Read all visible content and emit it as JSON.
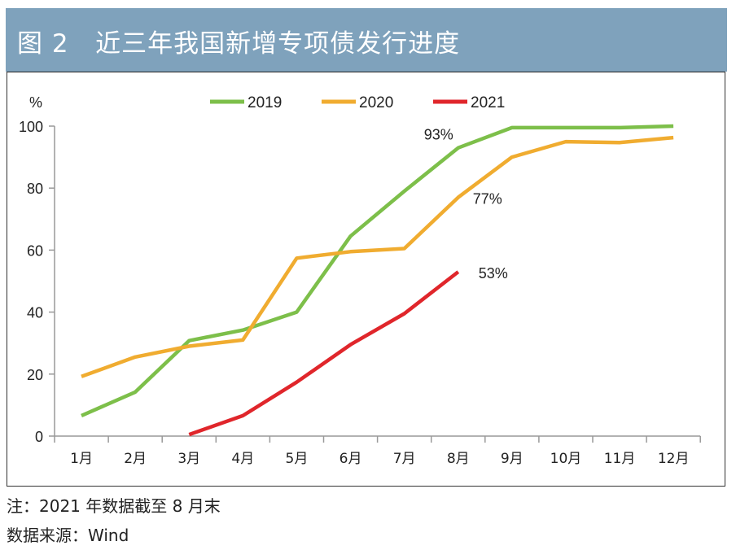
{
  "header": {
    "figure_no": "图 2",
    "title": "近三年我国新增专项债发行进度"
  },
  "notes": {
    "note": "注：2021 年数据截至 8 月末",
    "source": "数据来源：Wind"
  },
  "chart_data": {
    "type": "line",
    "title": "近三年我国新增专项债发行进度",
    "ylabel": "%",
    "xlabel": "",
    "ylim": [
      0,
      100
    ],
    "yticks": [
      0,
      20,
      40,
      60,
      80,
      100
    ],
    "grid": false,
    "legend": "top",
    "categories": [
      "1月",
      "2月",
      "3月",
      "4月",
      "5月",
      "6月",
      "7月",
      "8月",
      "9月",
      "10月",
      "11月",
      "12月"
    ],
    "series": [
      {
        "name": "2019",
        "color": "#7dbf4a",
        "values": [
          6.6,
          14.2,
          30.8,
          34.2,
          40,
          64.5,
          79,
          93,
          99.5,
          99.5,
          99.5,
          100
        ]
      },
      {
        "name": "2020",
        "color": "#f0ac30",
        "values": [
          19.2,
          25.5,
          29,
          31,
          57.4,
          59.5,
          60.5,
          77,
          90,
          95,
          94.7,
          96.3
        ]
      },
      {
        "name": "2021",
        "color": "#e0262b",
        "values": [
          null,
          null,
          0.5,
          6.6,
          17.4,
          29.5,
          39.5,
          53,
          null,
          null,
          null,
          null
        ]
      }
    ],
    "annotations": [
      {
        "text": "93%",
        "series": "2019",
        "category": "8月"
      },
      {
        "text": "77%",
        "series": "2020",
        "category": "8月"
      },
      {
        "text": "53%",
        "series": "2021",
        "category": "8月"
      }
    ]
  }
}
